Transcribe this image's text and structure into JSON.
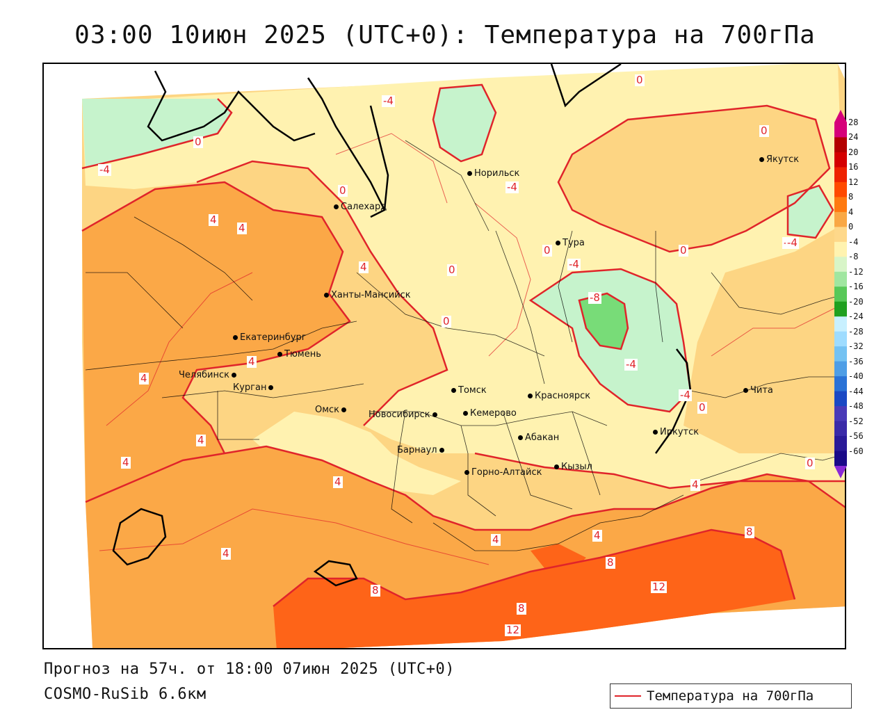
{
  "title": "03:00 10июн 2025 (UTC+0): Температура на 700гПа",
  "footer": {
    "forecast": "Прогноз на 57ч. от 18:00 07июн 2025 (UTC+0)",
    "model": "COSMO-RuSib 6.6км"
  },
  "legend": {
    "label": "Температура на 700гПа",
    "color": "#e0242a"
  },
  "colorbar": {
    "labels": [
      "28",
      "24",
      "20",
      "16",
      "12",
      "8",
      "4",
      "0",
      "-4",
      "-8",
      "-12",
      "-16",
      "-20",
      "-24",
      "-28",
      "-32",
      "-36",
      "-40",
      "-44",
      "-48",
      "-52",
      "-56",
      "-60"
    ],
    "colors": [
      "#d6007a",
      "#b30000",
      "#d40000",
      "#ee2200",
      "#ff4a00",
      "#ff7a10",
      "#f9a845",
      "#fed88a",
      "#fff3b0",
      "#d8f5c8",
      "#a0e6a0",
      "#58c858",
      "#20a020",
      "#c8f0ff",
      "#9edcff",
      "#74c2f2",
      "#4e9ee6",
      "#2a72d6",
      "#1a48c4",
      "#4a3ab8",
      "#3a2aa8",
      "#2a1a98",
      "#1a0a88"
    ]
  },
  "map_colors": {
    "fill_plus8_12": "#fe6418",
    "fill_plus4_8": "#fba847",
    "fill_0_4": "#fdd583",
    "fill_minus4_0": "#fff2b0",
    "fill_minus8_minus4": "#c6f3cc",
    "fill_minus12_minus8": "#78dc78",
    "contour": "#e0242a",
    "coast": "#000000"
  },
  "cities": [
    {
      "name": "Якутск"
    },
    {
      "name": "Норильск"
    },
    {
      "name": "Салехард"
    },
    {
      "name": "Тура"
    },
    {
      "name": "Ханты-Мансийск"
    },
    {
      "name": "Екатеринбург"
    },
    {
      "name": "Тюмень"
    },
    {
      "name": "Челябинск"
    },
    {
      "name": "Курган"
    },
    {
      "name": "Омск"
    },
    {
      "name": "Новосибирск"
    },
    {
      "name": "Томск"
    },
    {
      "name": "Кемерово"
    },
    {
      "name": "Красноярск"
    },
    {
      "name": "Абакан"
    },
    {
      "name": "Барнаул"
    },
    {
      "name": "Горно-Алтайск"
    },
    {
      "name": "Кызыл"
    },
    {
      "name": "Иркутск"
    },
    {
      "name": "Чита"
    }
  ],
  "isoline_labels": [
    "0",
    "-4",
    "0",
    "4",
    "4",
    "0",
    "0",
    "-4",
    "0",
    "-4",
    "4",
    "0",
    "0",
    "-4",
    "-8",
    "-4",
    "4",
    "0",
    "4",
    "4",
    "-4",
    "-4",
    "0",
    "4",
    "4",
    "4",
    "4",
    "4",
    "4",
    "8",
    "8",
    "8",
    "12",
    "12",
    "8",
    "0",
    "-4"
  ]
}
